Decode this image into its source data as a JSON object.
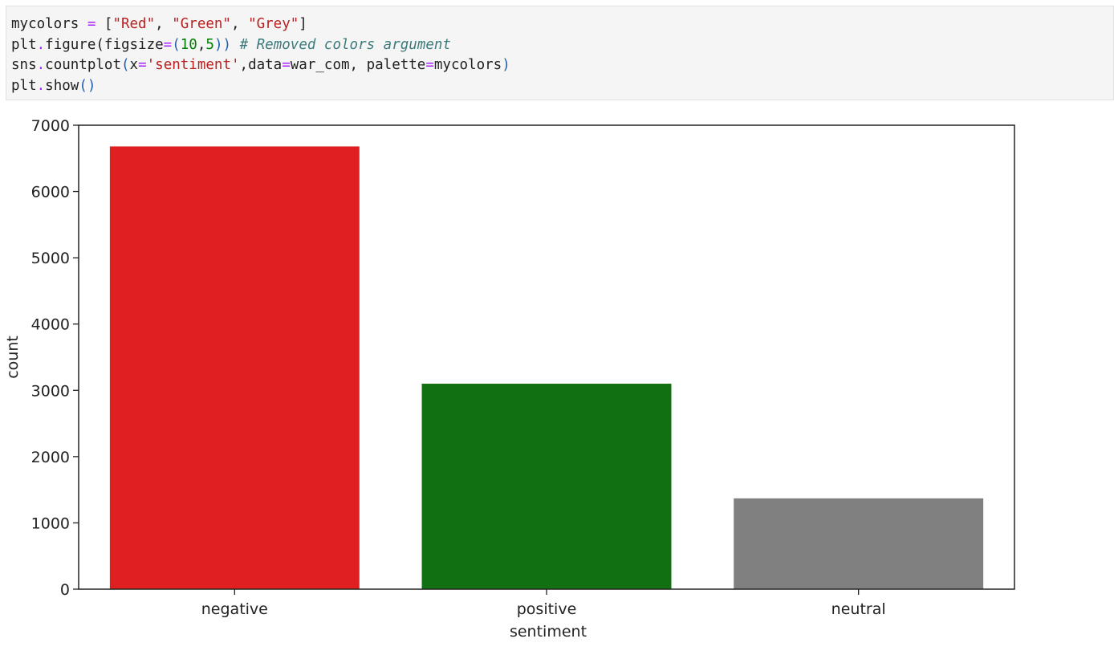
{
  "code_cell": {
    "lines": [
      [
        {
          "t": "mycolors ",
          "c": ""
        },
        {
          "t": "=",
          "c": "op"
        },
        {
          "t": " [",
          "c": ""
        },
        {
          "t": "\"Red\"",
          "c": "str"
        },
        {
          "t": ", ",
          "c": ""
        },
        {
          "t": "\"Green\"",
          "c": "str"
        },
        {
          "t": ", ",
          "c": ""
        },
        {
          "t": "\"Grey\"",
          "c": "str"
        },
        {
          "t": "]",
          "c": ""
        }
      ],
      [
        {
          "t": "plt",
          "c": ""
        },
        {
          "t": ".",
          "c": "op"
        },
        {
          "t": "figure(figsize",
          "c": ""
        },
        {
          "t": "=",
          "c": "op"
        },
        {
          "t": "(",
          "c": "br"
        },
        {
          "t": "10",
          "c": "num"
        },
        {
          "t": ",",
          "c": ""
        },
        {
          "t": "5",
          "c": "num"
        },
        {
          "t": "))",
          "c": "br"
        },
        {
          "t": " ",
          "c": ""
        },
        {
          "t": "# Removed colors argument",
          "c": "cm"
        }
      ],
      [
        {
          "t": "sns",
          "c": ""
        },
        {
          "t": ".",
          "c": "op"
        },
        {
          "t": "countplot",
          "c": ""
        },
        {
          "t": "(",
          "c": "br"
        },
        {
          "t": "x",
          "c": ""
        },
        {
          "t": "=",
          "c": "op"
        },
        {
          "t": "'sentiment'",
          "c": "str"
        },
        {
          "t": ",data",
          "c": ""
        },
        {
          "t": "=",
          "c": "op"
        },
        {
          "t": "war_com, palette",
          "c": ""
        },
        {
          "t": "=",
          "c": "op"
        },
        {
          "t": "mycolors",
          "c": ""
        },
        {
          "t": ")",
          "c": "br"
        }
      ],
      [
        {
          "t": "plt",
          "c": ""
        },
        {
          "t": ".",
          "c": "op"
        },
        {
          "t": "show",
          "c": ""
        },
        {
          "t": "()",
          "c": "br"
        }
      ]
    ]
  },
  "chart_data": {
    "type": "bar",
    "categories": [
      "negative",
      "positive",
      "neutral"
    ],
    "values": [
      6680,
      3100,
      1370
    ],
    "colors": [
      "#e02020",
      "#117011",
      "#808080"
    ],
    "xlabel": "sentiment",
    "ylabel": "count",
    "ylim": [
      0,
      7000
    ],
    "yticks": [
      0,
      1000,
      2000,
      3000,
      4000,
      5000,
      6000,
      7000
    ],
    "grid": false,
    "legend": "none"
  }
}
